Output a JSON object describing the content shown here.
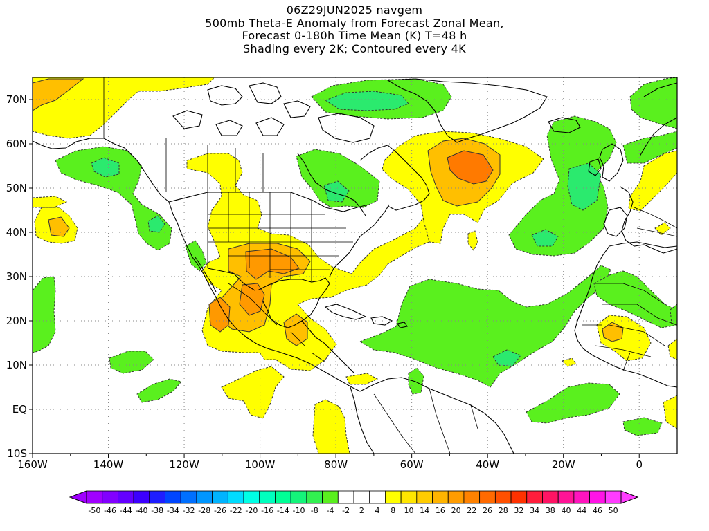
{
  "header": {
    "line1": "06Z29JUN2025 navgem",
    "line2": "500mb Theta-E Anomaly from Forecast Zonal Mean,",
    "line3": "Forecast 0-180h Time Mean (K) T=48 h",
    "line4": "Shading every 2K; Contoured every 4K"
  },
  "map": {
    "projection": "cylindrical",
    "lon_range": [
      -160,
      10
    ],
    "lat_range": [
      -10,
      75
    ],
    "grid": "dotted",
    "x_ticks": [
      {
        "lon": -160,
        "label": "160W"
      },
      {
        "lon": -140,
        "label": "140W"
      },
      {
        "lon": -120,
        "label": "120W"
      },
      {
        "lon": -100,
        "label": "100W"
      },
      {
        "lon": -80,
        "label": "80W"
      },
      {
        "lon": -60,
        "label": "60W"
      },
      {
        "lon": -40,
        "label": "40W"
      },
      {
        "lon": -20,
        "label": "20W"
      },
      {
        "lon": 0,
        "label": "0"
      }
    ],
    "y_ticks": [
      {
        "lat": 70,
        "label": "70N"
      },
      {
        "lat": 60,
        "label": "60N"
      },
      {
        "lat": 50,
        "label": "50N"
      },
      {
        "lat": 40,
        "label": "40N"
      },
      {
        "lat": 30,
        "label": "30N"
      },
      {
        "lat": 20,
        "label": "20N"
      },
      {
        "lat": 10,
        "label": "10N"
      },
      {
        "lat": 0,
        "label": "EQ"
      },
      {
        "lat": -10,
        "label": "10S"
      }
    ]
  },
  "colorbar": {
    "labels": [
      "-50",
      "-46",
      "-44",
      "-40",
      "-38",
      "-34",
      "-32",
      "-28",
      "-26",
      "-22",
      "-20",
      "-16",
      "-14",
      "-10",
      "-8",
      "-4",
      "-2",
      "2",
      "4",
      "8",
      "10",
      "14",
      "16",
      "20",
      "22",
      "26",
      "28",
      "32",
      "34",
      "38",
      "40",
      "44",
      "46",
      "50"
    ],
    "colors": [
      "#a000ff",
      "#8200ff",
      "#6400ff",
      "#3c00ff",
      "#1e1eff",
      "#0046ff",
      "#0070ff",
      "#0096ff",
      "#00b4ff",
      "#00dcff",
      "#00ffe6",
      "#00ffbe",
      "#00ff96",
      "#14f57a",
      "#32f050",
      "#5af01e",
      "#ffffff",
      "#ffffff",
      "#ffffff",
      "#ffff00",
      "#ffe600",
      "#ffcc00",
      "#ffb400",
      "#ff9c00",
      "#ff8200",
      "#ff6a00",
      "#ff5000",
      "#ff3200",
      "#ff1e3c",
      "#ff1464",
      "#ff1496",
      "#ff14be",
      "#ff14e6",
      "#ff3cff"
    ]
  },
  "shading_colors": {
    "pos_2_4": "#ffff00",
    "pos_4_6": "#ffe600",
    "pos_6_8": "#ffbf00",
    "pos_8_10": "#ff9900",
    "pos_10_12": "#ff7a00",
    "neg_2_4": "#5af01e",
    "neg_4_6": "#2bea6e"
  }
}
